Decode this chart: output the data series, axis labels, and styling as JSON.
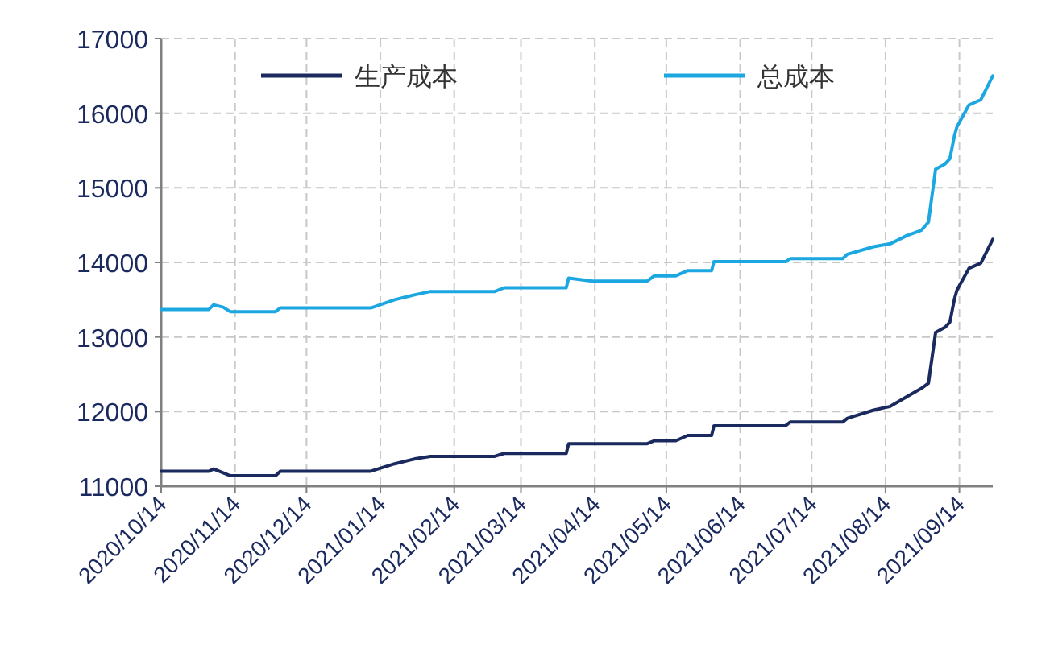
{
  "chart_data": {
    "type": "line",
    "x": [
      "2020-10-14",
      "2020-11-03",
      "2020-11-05",
      "2020-11-09",
      "2020-11-12",
      "2020-12-01",
      "2020-12-03",
      "2021-01-10",
      "2021-01-20",
      "2021-01-29",
      "2021-02-04",
      "2021-03-03",
      "2021-03-07",
      "2021-04-02",
      "2021-04-03",
      "2021-04-13",
      "2021-05-06",
      "2021-05-09",
      "2021-05-18",
      "2021-05-23",
      "2021-06-02",
      "2021-06-03",
      "2021-07-03",
      "2021-07-05",
      "2021-07-27",
      "2021-07-29",
      "2021-08-09",
      "2021-08-16",
      "2021-08-23",
      "2021-08-29",
      "2021-09-01",
      "2021-09-04",
      "2021-09-08",
      "2021-09-10",
      "2021-09-12",
      "2021-09-13",
      "2021-09-18",
      "2021-09-23",
      "2021-09-28"
    ],
    "series": [
      {
        "name": "生产成本",
        "color": "#1b2a5e",
        "values": [
          11200,
          11200,
          11230,
          11180,
          11140,
          11140,
          11200,
          11200,
          11300,
          11370,
          11400,
          11400,
          11440,
          11440,
          11570,
          11570,
          11570,
          11610,
          11610,
          11680,
          11680,
          11810,
          11810,
          11860,
          11860,
          11910,
          12020,
          12070,
          12200,
          12310,
          12380,
          13060,
          13130,
          13200,
          13520,
          13630,
          13920,
          13990,
          14310
        ]
      },
      {
        "name": "总成本",
        "color": "#1ca7e1",
        "values": [
          13370,
          13370,
          13430,
          13400,
          13340,
          13340,
          13390,
          13390,
          13500,
          13570,
          13610,
          13610,
          13660,
          13660,
          13790,
          13750,
          13750,
          13820,
          13820,
          13890,
          13890,
          14010,
          14010,
          14050,
          14050,
          14110,
          14210,
          14250,
          14360,
          14430,
          14540,
          15250,
          15320,
          15390,
          15710,
          15820,
          16110,
          16180,
          16500
        ]
      }
    ],
    "xlim": [
      "2020-10-14",
      "2021-09-28"
    ],
    "xticks": [
      {
        "value": "2020-10-14",
        "label": "2020/10/14"
      },
      {
        "value": "2020-11-14",
        "label": "2020/11/14"
      },
      {
        "value": "2020-12-14",
        "label": "2020/12/14"
      },
      {
        "value": "2021-01-14",
        "label": "2021/01/14"
      },
      {
        "value": "2021-02-14",
        "label": "2021/02/14"
      },
      {
        "value": "2021-03-14",
        "label": "2021/03/14"
      },
      {
        "value": "2021-04-14",
        "label": "2021/04/14"
      },
      {
        "value": "2021-05-14",
        "label": "2021/05/14"
      },
      {
        "value": "2021-06-14",
        "label": "2021/06/14"
      },
      {
        "value": "2021-07-14",
        "label": "2021/07/14"
      },
      {
        "value": "2021-08-14",
        "label": "2021/08/14"
      },
      {
        "value": "2021-09-14",
        "label": "2021/09/14"
      }
    ],
    "ylim": [
      11000,
      17000
    ],
    "yticks": [
      11000,
      12000,
      13000,
      14000,
      15000,
      16000,
      17000
    ],
    "grid": true,
    "legend": "top"
  }
}
